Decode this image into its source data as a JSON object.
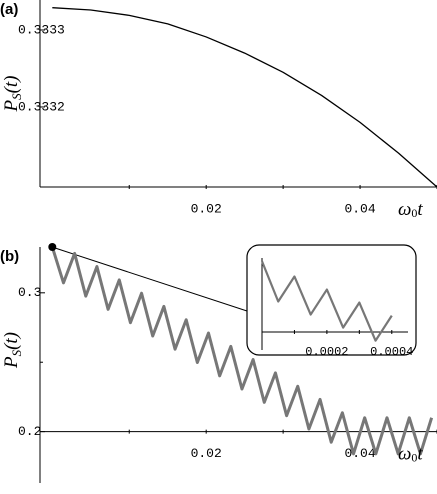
{
  "chart_data": [
    {
      "type": "line",
      "panel_label": "(a)",
      "ylabel": [
        "P",
        "S",
        "(t)"
      ],
      "xlabel": [
        "ω",
        "0",
        "t"
      ],
      "x": [
        0,
        0.005,
        0.01,
        0.015,
        0.02,
        0.025,
        0.03,
        0.035,
        0.04,
        0.045,
        0.05
      ],
      "series": [
        {
          "color": "#000000",
          "values": [
            0.333329,
            0.333326,
            0.333319,
            0.333308,
            0.333291,
            0.33327,
            0.333245,
            0.333215,
            0.33318,
            0.33314,
            0.333096
          ]
        }
      ],
      "xlim": [
        -0.0016,
        0.05
      ],
      "ylim": [
        0.333096,
        0.333339
      ],
      "xticks": [
        0.02,
        0.04
      ],
      "minor_xticks": [
        0.01,
        0.03,
        0.05
      ],
      "yticks": [
        0.3332,
        0.3333
      ]
    },
    {
      "type": "line",
      "panel_label": "(b)",
      "ylabel": [
        "P",
        "S",
        "(t)"
      ],
      "xlabel": [
        "ω",
        "0",
        "t"
      ],
      "x": [
        0,
        0.00145,
        0.0029,
        0.00435,
        0.0058,
        0.00725,
        0.0087,
        0.01015,
        0.0116,
        0.01305,
        0.0145,
        0.01595,
        0.0174,
        0.01885,
        0.0203,
        0.02175,
        0.0232,
        0.02465,
        0.0261,
        0.02755,
        0.029,
        0.03045,
        0.0319,
        0.03335,
        0.0348,
        0.03625,
        0.0377,
        0.03915,
        0.0406,
        0.04205,
        0.0435,
        0.04495,
        0.0464,
        0.04785,
        0.0493
      ],
      "series": [
        {
          "color": "#777777",
          "values": [
            0.333,
            0.3072,
            0.3284,
            0.2976,
            0.3189,
            0.2881,
            0.3093,
            0.2785,
            0.2997,
            0.2689,
            0.2902,
            0.2594,
            0.2806,
            0.2498,
            0.271,
            0.2402,
            0.2614,
            0.2307,
            0.2519,
            0.2211,
            0.2423,
            0.2115,
            0.2327,
            0.2019,
            0.2232,
            0.1924,
            0.2136,
            0.184,
            0.21,
            0.184,
            0.21,
            0.184,
            0.21,
            0.184,
            0.21
          ]
        }
      ],
      "xlim": [
        -0.0016,
        0.05
      ],
      "ylim": [
        0.163,
        0.333
      ],
      "xticks": [
        0.02,
        0.04
      ],
      "minor_xticks": [
        0.01,
        0.03,
        0.05
      ],
      "yticks": [
        0.2,
        0.3
      ],
      "minor_yticks": [
        0.25
      ]
    },
    {
      "type": "line",
      "x": [
        0,
        5e-05,
        0.0001,
        0.00015,
        0.0002,
        0.00025,
        0.0003,
        0.00035,
        0.0004
      ],
      "series": [
        {
          "color": "#777777",
          "values": [
            0.3332,
            0.3295,
            0.3318,
            0.3283,
            0.3306,
            0.3271,
            0.3294,
            0.3259,
            0.3282
          ]
        }
      ],
      "xlim": [
        0,
        0.00045
      ],
      "ylim": [
        0.3255,
        0.3335
      ],
      "xticks": [
        0.0002,
        0.0004
      ],
      "minor_xticks": [
        0.0001,
        0.0003
      ]
    }
  ]
}
